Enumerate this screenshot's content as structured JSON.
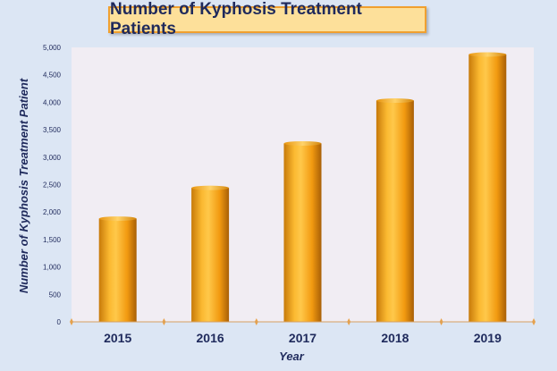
{
  "chart_data": {
    "type": "bar",
    "title": "Number of Kyphosis Treatment Patients",
    "xlabel": "Year",
    "ylabel": "Number of Kyphosis Treatment  Patient",
    "categories": [
      "2015",
      "2016",
      "2017",
      "2018",
      "2019"
    ],
    "values": [
      1880,
      2440,
      3250,
      4030,
      4870
    ],
    "ylim": [
      0,
      5000
    ],
    "yticks": [
      "0",
      "500",
      "1,000",
      "1,500",
      "2,000",
      "2,500",
      "3,000",
      "3,500",
      "4,000",
      "4,500",
      "5,000"
    ],
    "grid": false,
    "legend": "none",
    "colors": {
      "background": "#dce6f4",
      "plot_area": "#f1edf3",
      "bar": "#f6a818",
      "bar_dark": "#b86d08",
      "text": "#1f2a5c",
      "title_fill": "#fde09a",
      "title_border": "#f0a030"
    }
  }
}
